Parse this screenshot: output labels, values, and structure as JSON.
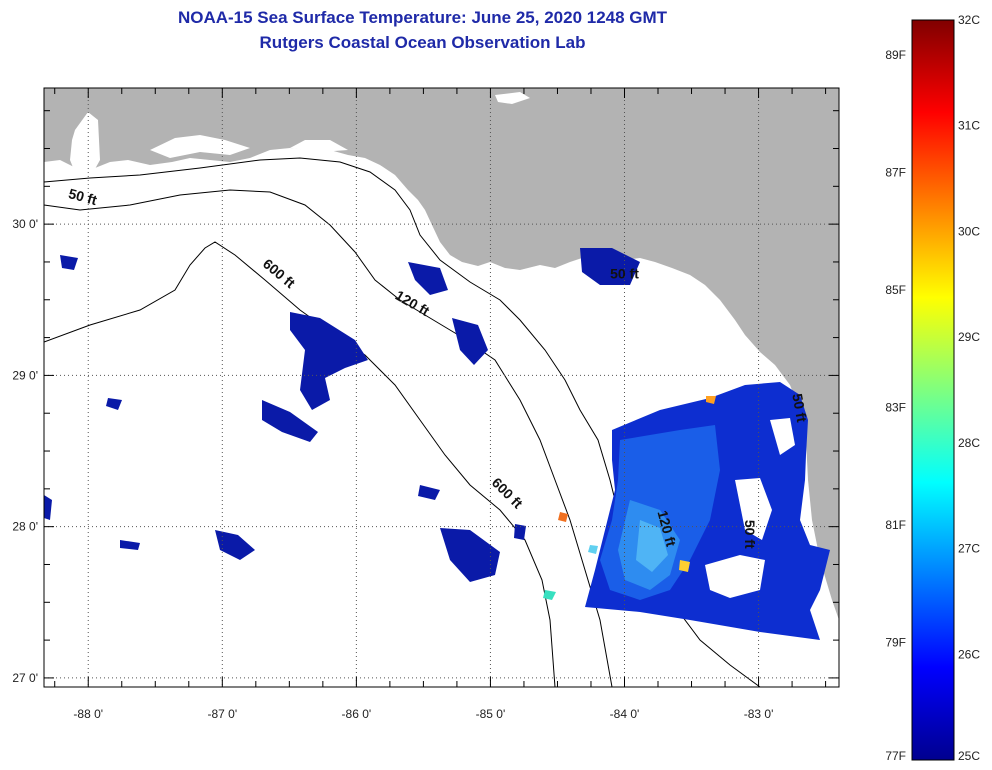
{
  "title": {
    "line1": "NOAA-15 Sea Surface Temperature:  June 25, 2020 1248 GMT",
    "line2": "Rutgers Coastal Ocean Observation Lab"
  },
  "colors": {
    "title": "#1f2aa8",
    "land": "#b3b3b3",
    "background": "#ffffff",
    "contour": "#000000"
  },
  "map": {
    "longitude_ticks": [
      {
        "value": -88,
        "label": "-88 0'"
      },
      {
        "value": -87,
        "label": "-87 0'"
      },
      {
        "value": -86,
        "label": "-86 0'"
      },
      {
        "value": -85,
        "label": "-85 0'"
      },
      {
        "value": -84,
        "label": "-84 0'"
      },
      {
        "value": -83,
        "label": "-83 0'"
      }
    ],
    "latitude_ticks": [
      {
        "value": 30,
        "label": "30 0'"
      },
      {
        "value": 29,
        "label": "29 0'"
      },
      {
        "value": 28,
        "label": "28 0'"
      },
      {
        "value": 27,
        "label": "27 0'"
      }
    ],
    "lon_range": [
      -88.33,
      -82.4
    ],
    "lat_range": [
      26.94,
      30.9
    ],
    "contour_labels": [
      {
        "text": "50 ft",
        "lon": -88.05,
        "lat": 30.15,
        "angle": 15
      },
      {
        "text": "600 ft",
        "lon": -86.6,
        "lat": 29.65,
        "angle": 40
      },
      {
        "text": "120 ft",
        "lon": -85.6,
        "lat": 29.45,
        "angle": 30
      },
      {
        "text": "50 ft",
        "lon": -84.0,
        "lat": 29.64,
        "angle": 0
      },
      {
        "text": "600 ft",
        "lon": -84.9,
        "lat": 28.2,
        "angle": 45
      },
      {
        "text": "120 ft",
        "lon": -83.72,
        "lat": 27.98,
        "angle": 75
      },
      {
        "text": "50 ft",
        "lon": -83.1,
        "lat": 27.95,
        "angle": 90
      },
      {
        "text": "50 ft",
        "lon": -82.73,
        "lat": 28.78,
        "angle": 80
      }
    ]
  },
  "colorbar": {
    "celsius": [
      "32C",
      "31C",
      "30C",
      "29C",
      "28C",
      "27C",
      "26C",
      "25C"
    ],
    "celsius_values": [
      32,
      31,
      30,
      29,
      28,
      27,
      26,
      25
    ],
    "fahrenheit": [
      "89F",
      "87F",
      "85F",
      "83F",
      "81F",
      "79F",
      "77F"
    ],
    "fahrenheit_values": [
      89,
      87,
      85,
      83,
      81,
      79,
      77
    ],
    "range_c": [
      25,
      32
    ]
  }
}
